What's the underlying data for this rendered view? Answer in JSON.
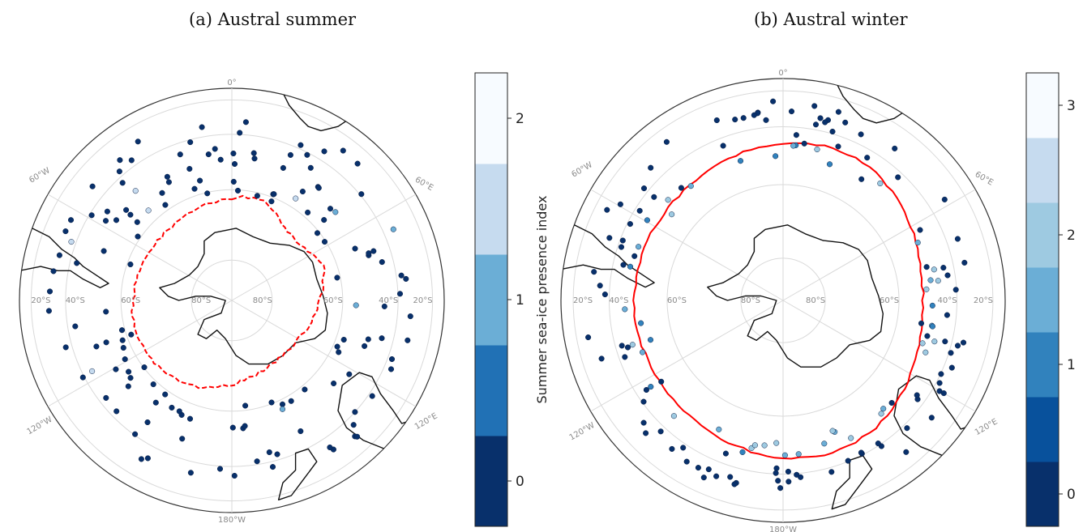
{
  "panels": [
    {
      "id": "summer",
      "title": "(a) Austral summer",
      "colorbar": {
        "label": "Summer sea-ice presence index",
        "ticks": [
          "0",
          "1",
          "2"
        ],
        "range": [
          -0.25,
          2.25
        ],
        "colors": [
          "#08306b",
          "#2171b5",
          "#6baed6",
          "#c6dbef",
          "#f7fbff"
        ]
      },
      "sea_ice_edge_style": "dashed",
      "sea_ice_edge_color": "#ff0000"
    },
    {
      "id": "winter",
      "title": "(b) Austral winter",
      "colorbar": {
        "label": "Winter sea-ice presence index",
        "ticks": [
          "0",
          "1",
          "2",
          "3"
        ],
        "range": [
          -0.25,
          3.25
        ],
        "colors": [
          "#08306b",
          "#08519c",
          "#3182bd",
          "#6baed6",
          "#9ecae1",
          "#c6dbef",
          "#f7fbff"
        ]
      },
      "sea_ice_edge_style": "solid",
      "sea_ice_edge_color": "#ff0000"
    }
  ],
  "graticule_labels": {
    "top": "0°",
    "bottom": "180°W",
    "upper_left": "60°W",
    "lower_left": "120°W",
    "upper_right": "60°E",
    "lower_right": "120°E",
    "latitudes_left": [
      "20°S",
      "40°S",
      "60°S",
      "80°S"
    ],
    "latitudes_right": [
      "80°S",
      "60°S",
      "40°S",
      "20°S"
    ]
  }
}
